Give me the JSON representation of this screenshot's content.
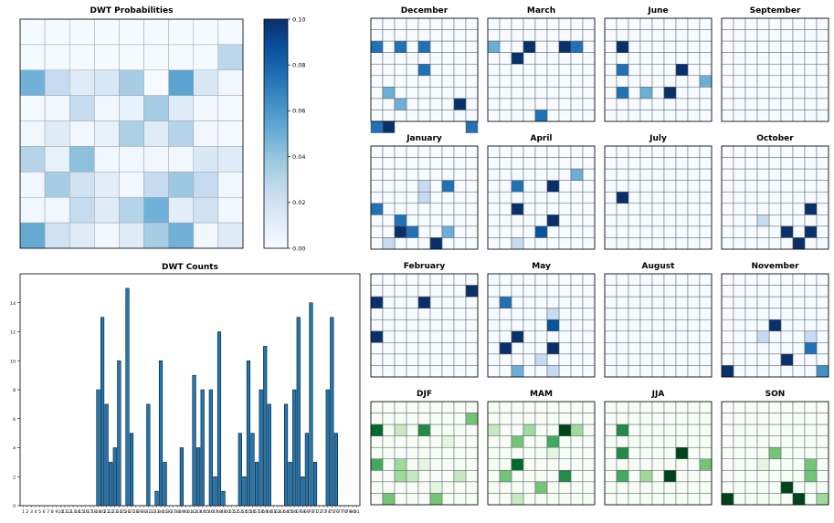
{
  "colors": {
    "blues": [
      "#f7fbff",
      "#deebf7",
      "#c6dbef",
      "#9ecae1",
      "#6baed6",
      "#4292c6",
      "#2171b5",
      "#08519c",
      "#08306b"
    ],
    "greens": [
      "#f7fcf5",
      "#e5f5e0",
      "#c7e9c0",
      "#a1d99b",
      "#74c476",
      "#41ab5d",
      "#238b45",
      "#006d2c",
      "#00441b"
    ],
    "bar": "#1f77b4",
    "grid_line": "#5a6470"
  },
  "chart_data": [
    {
      "type": "heatmap",
      "title": "DWT Probabilities",
      "rows": 9,
      "cols": 9,
      "colorbar": {
        "min": 0,
        "max": 0.1,
        "ticks": [
          "0.00",
          "0.02",
          "0.04",
          "0.06",
          "0.08",
          "0.10"
        ]
      },
      "values": [
        [
          0.001,
          0.001,
          0.001,
          0.001,
          0.001,
          0.001,
          0.001,
          0.001,
          0.001
        ],
        [
          0.001,
          0.001,
          0.001,
          0.001,
          0.001,
          0.001,
          0.001,
          0.001,
          0.028
        ],
        [
          0.048,
          0.025,
          0.012,
          0.016,
          0.035,
          0.0,
          0.055,
          0.015,
          0.003
        ],
        [
          0.001,
          0.003,
          0.025,
          0.003,
          0.008,
          0.036,
          0.012,
          0.003,
          0.001
        ],
        [
          0.003,
          0.012,
          0.003,
          0.008,
          0.033,
          0.012,
          0.03,
          0.003,
          0.001
        ],
        [
          0.03,
          0.008,
          0.042,
          0.003,
          0.003,
          0.003,
          0.003,
          0.015,
          0.012
        ],
        [
          0.003,
          0.035,
          0.02,
          0.01,
          0.003,
          0.025,
          0.038,
          0.025,
          0.003
        ],
        [
          0.003,
          0.003,
          0.025,
          0.012,
          0.03,
          0.048,
          0.01,
          0.02,
          0.003
        ],
        [
          0.052,
          0.02,
          0.012,
          0.003,
          0.012,
          0.035,
          0.048,
          0.003,
          0.012
        ]
      ]
    },
    {
      "type": "bar",
      "title": "DWT Counts",
      "categories": [
        "1",
        "2",
        "3",
        "4",
        "5",
        "6",
        "7",
        "8",
        "9",
        "10",
        "11",
        "12",
        "13",
        "14",
        "15",
        "16",
        "17",
        "18",
        "19",
        "20",
        "21",
        "22",
        "23",
        "24",
        "25",
        "26",
        "27",
        "28",
        "29",
        "30",
        "31",
        "32",
        "33",
        "34",
        "35",
        "36",
        "37",
        "38",
        "39",
        "40",
        "41",
        "42",
        "43",
        "44",
        "45",
        "46",
        "47",
        "48",
        "49",
        "50",
        "51",
        "52",
        "53",
        "54",
        "55",
        "56",
        "57",
        "58",
        "59",
        "60",
        "61",
        "62",
        "63",
        "64",
        "65",
        "66",
        "67",
        "68",
        "69",
        "70",
        "71",
        "72",
        "73",
        "74",
        "75",
        "76",
        "77",
        "78",
        "79",
        "80",
        "81"
      ],
      "values": [
        0,
        0,
        0,
        0,
        0,
        0,
        0,
        0,
        0,
        0,
        0,
        0,
        0,
        0,
        0,
        0,
        0,
        0,
        8,
        13,
        7,
        3,
        4,
        10,
        0,
        15,
        5,
        0,
        0,
        0,
        7,
        0,
        1,
        10,
        3,
        0,
        0,
        0,
        4,
        0,
        0,
        9,
        4,
        8,
        0,
        8,
        2,
        12,
        1,
        0,
        0,
        0,
        5,
        2,
        10,
        5,
        3,
        8,
        11,
        7,
        0,
        0,
        0,
        7,
        3,
        8,
        13,
        2,
        5,
        14,
        3,
        0,
        0,
        8,
        13,
        5,
        0,
        0,
        0,
        0,
        0
      ],
      "ylim": [
        0,
        16
      ],
      "yticks": [
        "0",
        "2",
        "4",
        "6",
        "8",
        "10",
        "12",
        "14"
      ]
    },
    {
      "type": "heatmap",
      "title": "December",
      "cmap": "blues",
      "rows": 9,
      "cols": 9,
      "cells": [
        [
          2,
          0,
          6
        ],
        [
          2,
          2,
          6
        ],
        [
          2,
          4,
          6
        ],
        [
          4,
          4,
          6
        ],
        [
          6,
          1,
          4
        ],
        [
          7,
          2,
          4
        ],
        [
          7,
          7,
          8
        ],
        [
          9,
          0,
          6
        ],
        [
          9,
          1,
          8
        ],
        [
          9,
          8,
          6
        ]
      ]
    },
    {
      "type": "heatmap",
      "title": "March",
      "cmap": "blues",
      "rows": 9,
      "cols": 9,
      "cells": [
        [
          2,
          0,
          4
        ],
        [
          2,
          3,
          8
        ],
        [
          2,
          6,
          8
        ],
        [
          2,
          7,
          6
        ],
        [
          3,
          2,
          8
        ],
        [
          8,
          4,
          6
        ]
      ]
    },
    {
      "type": "heatmap",
      "title": "June",
      "cmap": "blues",
      "rows": 9,
      "cols": 9,
      "cells": [
        [
          2,
          1,
          8
        ],
        [
          4,
          1,
          6
        ],
        [
          4,
          6,
          8
        ],
        [
          5,
          8,
          4
        ],
        [
          6,
          1,
          6
        ],
        [
          6,
          3,
          4
        ],
        [
          6,
          5,
          8
        ]
      ]
    },
    {
      "type": "heatmap",
      "title": "September",
      "cmap": "blues",
      "rows": 9,
      "cols": 9,
      "cells": []
    },
    {
      "type": "heatmap",
      "title": "January",
      "cmap": "blues",
      "rows": 9,
      "cols": 9,
      "cells": [
        [
          3,
          4,
          2
        ],
        [
          3,
          6,
          6
        ],
        [
          4,
          4,
          2
        ],
        [
          5,
          0,
          6
        ],
        [
          6,
          2,
          6
        ],
        [
          7,
          2,
          8
        ],
        [
          7,
          3,
          6
        ],
        [
          7,
          6,
          4
        ],
        [
          8,
          1,
          2
        ],
        [
          8,
          5,
          8
        ]
      ]
    },
    {
      "type": "heatmap",
      "title": "April",
      "cmap": "blues",
      "rows": 9,
      "cols": 9,
      "cells": [
        [
          2,
          7,
          4
        ],
        [
          3,
          2,
          6
        ],
        [
          3,
          5,
          8
        ],
        [
          5,
          2,
          8
        ],
        [
          6,
          5,
          8
        ],
        [
          7,
          4,
          7
        ],
        [
          8,
          2,
          2
        ]
      ]
    },
    {
      "type": "heatmap",
      "title": "July",
      "cmap": "blues",
      "rows": 9,
      "cols": 9,
      "cells": [
        [
          4,
          1,
          8
        ]
      ]
    },
    {
      "type": "heatmap",
      "title": "October",
      "cmap": "blues",
      "rows": 9,
      "cols": 9,
      "cells": [
        [
          5,
          7,
          8
        ],
        [
          6,
          3,
          2
        ],
        [
          7,
          5,
          8
        ],
        [
          7,
          7,
          8
        ],
        [
          8,
          6,
          8
        ]
      ]
    },
    {
      "type": "heatmap",
      "title": "February",
      "cmap": "blues",
      "rows": 9,
      "cols": 9,
      "cells": [
        [
          1,
          8,
          8
        ],
        [
          2,
          0,
          8
        ],
        [
          2,
          4,
          8
        ],
        [
          5,
          0,
          8
        ]
      ]
    },
    {
      "type": "heatmap",
      "title": "May",
      "cmap": "blues",
      "rows": 9,
      "cols": 9,
      "cells": [
        [
          2,
          1,
          6
        ],
        [
          3,
          5,
          2
        ],
        [
          4,
          5,
          7
        ],
        [
          5,
          2,
          8
        ],
        [
          6,
          1,
          8
        ],
        [
          6,
          5,
          8
        ],
        [
          7,
          4,
          2
        ],
        [
          8,
          2,
          4
        ],
        [
          8,
          5,
          2
        ]
      ]
    },
    {
      "type": "heatmap",
      "title": "August",
      "cmap": "blues",
      "rows": 9,
      "cols": 9,
      "cells": []
    },
    {
      "type": "heatmap",
      "title": "November",
      "cmap": "blues",
      "rows": 9,
      "cols": 9,
      "cells": [
        [
          4,
          4,
          8
        ],
        [
          5,
          3,
          2
        ],
        [
          5,
          7,
          2
        ],
        [
          6,
          7,
          6
        ],
        [
          7,
          5,
          8
        ],
        [
          8,
          0,
          8
        ],
        [
          8,
          8,
          5
        ]
      ]
    },
    {
      "type": "heatmap",
      "title": "DJF",
      "cmap": "greens",
      "rows": 9,
      "cols": 9,
      "cells": [
        [
          1,
          8,
          4
        ],
        [
          2,
          0,
          7
        ],
        [
          2,
          2,
          2
        ],
        [
          2,
          4,
          6
        ],
        [
          3,
          6,
          1
        ],
        [
          5,
          0,
          5
        ],
        [
          5,
          2,
          3
        ],
        [
          5,
          4,
          1
        ],
        [
          6,
          2,
          3
        ],
        [
          6,
          3,
          2
        ],
        [
          6,
          7,
          2
        ],
        [
          7,
          5,
          1
        ],
        [
          8,
          1,
          4
        ],
        [
          8,
          5,
          4
        ]
      ]
    },
    {
      "type": "heatmap",
      "title": "MAM",
      "cmap": "greens",
      "rows": 9,
      "cols": 9,
      "cells": [
        [
          2,
          0,
          2
        ],
        [
          2,
          3,
          3
        ],
        [
          2,
          6,
          8
        ],
        [
          2,
          7,
          3
        ],
        [
          3,
          2,
          4
        ],
        [
          3,
          5,
          5
        ],
        [
          4,
          5,
          1
        ],
        [
          5,
          2,
          7
        ],
        [
          6,
          1,
          4
        ],
        [
          6,
          6,
          6
        ],
        [
          7,
          4,
          4
        ],
        [
          8,
          2,
          2
        ]
      ]
    },
    {
      "type": "heatmap",
      "title": "JJA",
      "cmap": "greens",
      "rows": 9,
      "cols": 9,
      "cells": [
        [
          2,
          1,
          6
        ],
        [
          4,
          1,
          6
        ],
        [
          4,
          6,
          8
        ],
        [
          5,
          8,
          4
        ],
        [
          6,
          1,
          5
        ],
        [
          6,
          3,
          3
        ],
        [
          6,
          5,
          8
        ]
      ]
    },
    {
      "type": "heatmap",
      "title": "SON",
      "cmap": "greens",
      "rows": 9,
      "cols": 9,
      "cells": [
        [
          4,
          4,
          4
        ],
        [
          5,
          3,
          1
        ],
        [
          5,
          7,
          4
        ],
        [
          6,
          7,
          4
        ],
        [
          7,
          5,
          8
        ],
        [
          8,
          0,
          8
        ],
        [
          8,
          6,
          8
        ],
        [
          8,
          8,
          3
        ]
      ]
    }
  ]
}
